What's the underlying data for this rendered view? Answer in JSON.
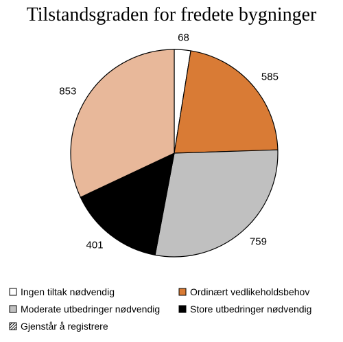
{
  "chart_data": {
    "type": "pie",
    "title": "Tilstandsgraden for fredete bygninger",
    "start_angle_deg": 0,
    "direction": "clockwise",
    "legend_placement": "bottom",
    "slices": [
      {
        "label": "Ingen tiltak nødvendig",
        "value": 68,
        "color": "#ffffff"
      },
      {
        "label": "Ordinært vedlikeholdsbehov",
        "value": 585,
        "color": "#d97b35"
      },
      {
        "label": "Moderate utbedringer nødvendig",
        "value": 759,
        "color": "#c0c0c0"
      },
      {
        "label": "Store utbedringer nødvendig",
        "value": 401,
        "color": "#000000"
      },
      {
        "label": "Gjenstår å registrere",
        "value": 853,
        "color": "#e8b89a"
      }
    ]
  }
}
